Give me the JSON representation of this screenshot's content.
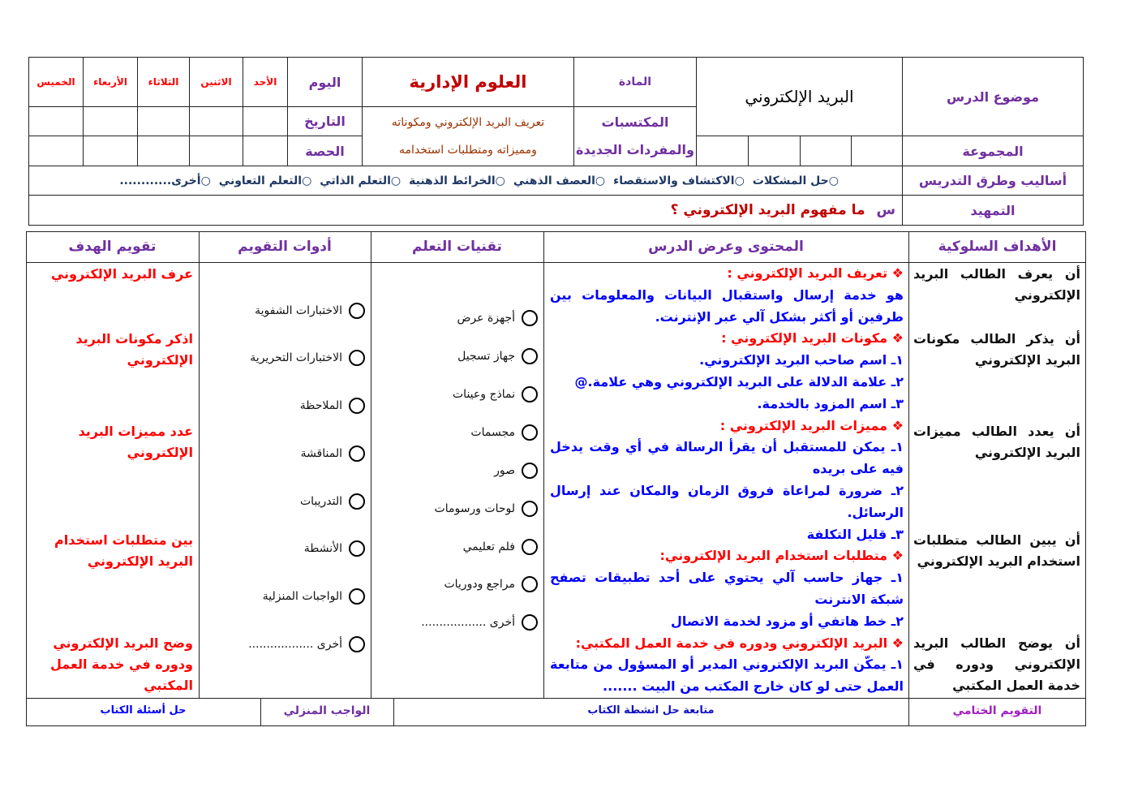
{
  "header": {
    "lesson_topic_label": "موضوع الدرس",
    "lesson_topic": "البريد الإلكتروني",
    "group_label": "المجموعة",
    "subject_label": "المادة",
    "subject": "العلوم الإدارية",
    "acquired_label_1": "المكتسبات",
    "acquired_label_2": "والمفردات الجديدة",
    "acquired_1": "تعريف البريد الإلكتروني ومكوناته",
    "acquired_2": "ومميزاته ومتطلبات استخدامه",
    "day_label": "اليوم",
    "date_label": "التاريخ",
    "period_label": "الحصة",
    "days": [
      "الأحد",
      "الاثنين",
      "الثلاثاء",
      "الأربعاء",
      "الخميس"
    ],
    "methods_label": "أساليب وطرق التدريس",
    "methods": [
      "حل المشكلات",
      "الاكتشاف والاستقصاء",
      "العصف الذهني",
      "الخرائط الذهنية",
      "التعلم الذاتي",
      "التعلم التعاوني",
      "أخرى............"
    ],
    "intro_label": "التمهيد",
    "intro_prefix": "س",
    "intro_question": "ما مفهوم البريد الإلكتروني ؟"
  },
  "columns": {
    "goals": "الأهداف السلوكية",
    "content": "المحتوى وعرض الدرس",
    "techniques": "تقنيات التعلم",
    "tools": "أدوات التقويم",
    "evaluation": "تقويم الهدف"
  },
  "goals": [
    "أن يعرف الطالب البريد الإلكتروني",
    "أن يذكر الطالب مكونات البريد الإلكتروني",
    "أن يعدد الطالب مميزات البريد الإلكتروني",
    "أن يبين الطالب متطلبات استخدام البريد الإلكتروني",
    "أن يوضح الطالب البريد الإلكتروني ودوره في خدمة العمل المكتبي"
  ],
  "content": {
    "bullet": "❖",
    "def_title": "تعريف البريد الإلكتروني :",
    "def_text": "هو خدمة إرسال واستقبال البيانات والمعلومات بين طرفين أو أكثر بشكل آلي عبر الإنترنت.",
    "comp_title": "مكونات البريد الإلكتروني :",
    "comp": [
      "١ـ اسم صاحب البريد الإلكتروني.",
      "٢ـ علامة الدلالة على البريد الإلكتروني وهي علامة.@",
      "٣ـ اسم المزود بالخدمة."
    ],
    "feat_title": "مميزات البريد الإلكتروني :",
    "feat": [
      "١ـ يمكن للمستقبل أن يقرأ الرسالة في أي وقت يدخل فيه على بريده",
      "٢ـ ضرورة لمراعاة فروق الزمان والمكان عند إرسال الرسائل.",
      "٣ـ قليل التكلفة"
    ],
    "req_title": "متطلبات استخدام البريد الإلكتروني:",
    "req": [
      "١ـ جهاز حاسب آلي يحتوي على أحد تطبيقات تصفح شبكة الانترنت",
      "٢ـ خط هاتفي أو مزود لخدمة الاتصال"
    ],
    "role_title": "البريد الإلكتروني ودوره في خدمة العمل المكتبي:",
    "role": [
      "١ـ يمكّن البريد الإلكتروني المدير أو المسؤول من متابعة العمل حتى لو كان خارج المكتب من البيت ......."
    ]
  },
  "techniques": [
    "أجهزة عرض",
    "جهاز تسجيل",
    "نماذج وعينات",
    "مجسمات",
    "صور",
    "لوحات ورسومات",
    "فلم تعليمي",
    "مراجع ودوريات",
    "أخرى .................."
  ],
  "tools": [
    "الاختبارات الشفوية",
    "الاختبارات التحريرية",
    "الملاحظة",
    "المناقشة",
    "التدريبات",
    "الأنشطة",
    "الواجبات المنزلية",
    "أخرى .................."
  ],
  "evaluation": [
    "عرف البريد الإلكتروني",
    "اذكر مكونات البريد الإلكتروني",
    "عدد مميزات البريد الإلكتروني",
    "بين متطلبات استخدام البريد الإلكتروني",
    "وضح البريد الإلكتروني ودوره في خدمة العمل المكتبي"
  ],
  "footer": {
    "final_eval_label": "التقويم الختامي",
    "final_eval": "متابعة حل انشطة الكتاب",
    "homework_label": "الواجب المنزلي",
    "homework": "حل أسئلة الكتاب"
  },
  "colors": {
    "purple": "#7030a0",
    "red": "#ff0000",
    "blue": "#0000ff",
    "navy": "#1f3864",
    "brown": "#993300"
  }
}
